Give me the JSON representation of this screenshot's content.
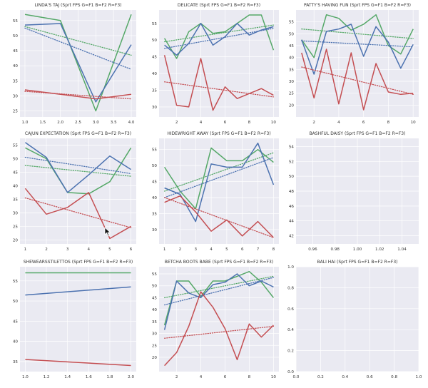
{
  "colors": {
    "background": "#eaeaf2",
    "grid": "#ffffff",
    "green": "#55a868",
    "blue": "#4c72b0",
    "red": "#c44e52"
  },
  "chart_data": [
    {
      "type": "line",
      "title": "LINDA'S TAJ (Sprt FPS G=F1 B=F2 R=F3)",
      "x": [
        1,
        2,
        3,
        4
      ],
      "xticks": [
        "1.0",
        "1.5",
        "2.0",
        "2.5",
        "3.0",
        "3.5",
        "4.0"
      ],
      "xtick_values": [
        1,
        1.5,
        2,
        2.5,
        3,
        3.5,
        4
      ],
      "xlim": [
        0.86,
        4.14
      ],
      "yticks": [
        "25",
        "30",
        "35",
        "40",
        "45",
        "50",
        "55"
      ],
      "ytick_values": [
        25,
        30,
        35,
        40,
        45,
        50,
        55
      ],
      "ylim": [
        23,
        58.5
      ],
      "series": [
        {
          "color": "green",
          "values": [
            57,
            55,
            25,
            57
          ],
          "trend": [
            53,
            43.5
          ]
        },
        {
          "color": "blue",
          "values": [
            53.5,
            54,
            28,
            47
          ],
          "trend": [
            52.5,
            38.8
          ]
        },
        {
          "color": "red",
          "values": [
            32,
            30.5,
            29,
            30.5
          ],
          "trend": [
            31.5,
            29
          ]
        }
      ]
    },
    {
      "type": "line",
      "title": "DELICATE (Sprt FPS G=F1 B=F2 R=F3)",
      "x": [
        1,
        2,
        3,
        4,
        5,
        6,
        7,
        8,
        9,
        10
      ],
      "xticks": [
        "2",
        "4",
        "6",
        "8",
        "10"
      ],
      "xtick_values": [
        2,
        4,
        6,
        8,
        10
      ],
      "xlim": [
        0.55,
        10.45
      ],
      "yticks": [
        "30",
        "35",
        "40",
        "45",
        "50",
        "55"
      ],
      "ytick_values": [
        30,
        35,
        40,
        45,
        50,
        55
      ],
      "ylim": [
        27,
        59
      ],
      "series": [
        {
          "color": "green",
          "values": [
            50.5,
            44.5,
            52.5,
            55,
            52,
            52.5,
            55,
            57.5,
            57.5,
            47
          ],
          "trend": [
            49.5,
            54.5
          ]
        },
        {
          "color": "blue",
          "values": [
            48.5,
            45.5,
            49,
            55,
            48.5,
            51,
            55,
            51.5,
            53,
            54
          ],
          "trend": [
            47.5,
            53.5
          ]
        },
        {
          "color": "red",
          "values": [
            45.5,
            30.5,
            30,
            44.5,
            29,
            36,
            32.5,
            34,
            35.5,
            33.5
          ],
          "trend": [
            37.5,
            33
          ]
        }
      ]
    },
    {
      "type": "line",
      "title": "PATTY'S HAVING FUN (Sprt FPS G=F1 B=F2 R=F3)",
      "x": [
        1,
        2,
        3,
        4,
        5,
        6,
        7,
        8,
        9,
        10
      ],
      "xticks": [
        "2",
        "4",
        "6",
        "8",
        "10"
      ],
      "xtick_values": [
        2,
        4,
        6,
        8,
        10
      ],
      "xlim": [
        0.55,
        10.45
      ],
      "yticks": [
        "20",
        "25",
        "30",
        "35",
        "40",
        "45",
        "50",
        "55"
      ],
      "ytick_values": [
        20,
        25,
        30,
        35,
        40,
        45,
        50,
        55
      ],
      "ylim": [
        15,
        60
      ],
      "series": [
        {
          "color": "green",
          "values": [
            47.5,
            40,
            58,
            56.5,
            51.5,
            54,
            58,
            45,
            41.5,
            52
          ],
          "trend": [
            52,
            48
          ]
        },
        {
          "color": "blue",
          "values": [
            47.5,
            33,
            51,
            52,
            54,
            40.5,
            53,
            46.5,
            35.5,
            45.5
          ],
          "trend": [
            47,
            44.5
          ]
        },
        {
          "color": "red",
          "values": [
            42,
            23,
            43.5,
            20.5,
            42,
            18,
            37.5,
            25.5,
            24.5,
            25
          ],
          "trend": [
            36,
            24.5
          ]
        }
      ]
    },
    {
      "type": "line",
      "title": "CAJUN EXPECTATION (Sprt FPS G=F1 B=F2 R=F3)",
      "x": [
        1,
        2,
        3,
        4,
        5,
        6
      ],
      "xticks": [
        "1",
        "2",
        "3",
        "4",
        "5",
        "6"
      ],
      "xtick_values": [
        1,
        2,
        3,
        4,
        5,
        6
      ],
      "xlim": [
        0.75,
        6.25
      ],
      "yticks": [
        "20",
        "25",
        "30",
        "35",
        "40",
        "45",
        "50",
        "55"
      ],
      "ytick_values": [
        20,
        25,
        30,
        35,
        40,
        45,
        50,
        55
      ],
      "ylim": [
        18.5,
        57.5
      ],
      "series": [
        {
          "color": "green",
          "values": [
            54,
            50,
            37.5,
            37,
            41.5,
            54
          ],
          "trend": [
            47.5,
            43.5
          ]
        },
        {
          "color": "blue",
          "values": [
            56,
            50.5,
            37.5,
            44,
            51,
            46
          ],
          "trend": [
            50.5,
            44.5
          ]
        },
        {
          "color": "red",
          "values": [
            39,
            29.5,
            32,
            37.5,
            20.5,
            25
          ],
          "trend": [
            35.5,
            24.5
          ]
        }
      ]
    },
    {
      "type": "line",
      "title": "HIDEWRIGHT AWAY (Sprt FPS G=F1 B=F2 R=F3)",
      "x": [
        1,
        2,
        3,
        4,
        5,
        6,
        7,
        8
      ],
      "xticks": [
        "1",
        "2",
        "3",
        "4",
        "5",
        "6",
        "7",
        "8"
      ],
      "xtick_values": [
        1,
        2,
        3,
        4,
        5,
        6,
        7,
        8
      ],
      "xlim": [
        0.65,
        8.35
      ],
      "yticks": [
        "30",
        "35",
        "40",
        "45",
        "50",
        "55"
      ],
      "ytick_values": [
        30,
        35,
        40,
        45,
        50,
        55
      ],
      "ylim": [
        25.5,
        58.5
      ],
      "series": [
        {
          "color": "green",
          "values": [
            49.5,
            42,
            36.5,
            55.5,
            51.5,
            51.5,
            55,
            51
          ],
          "trend": [
            42,
            54
          ]
        },
        {
          "color": "blue",
          "values": [
            43,
            41,
            32.5,
            50.5,
            49.5,
            49.5,
            57,
            44
          ],
          "trend": [
            40,
            52.5
          ]
        },
        {
          "color": "red",
          "values": [
            38.5,
            40.5,
            35.5,
            29.5,
            33,
            28,
            32.5,
            27.5
          ],
          "trend": [
            40,
            27.5
          ]
        }
      ]
    },
    {
      "type": "line",
      "title": "BASHFUL DAISY (Sprt FPS G=F1 B=F2 R=F3)",
      "x": [],
      "xticks": [
        "0.96",
        "0.98",
        "1.00",
        "1.02",
        "1.04"
      ],
      "xtick_values": [
        0.96,
        0.98,
        1,
        1.02,
        1.04
      ],
      "xlim": [
        0.945,
        1.055
      ],
      "yticks": [
        "42",
        "44",
        "46",
        "48",
        "50",
        "52",
        "54"
      ],
      "ytick_values": [
        42,
        44,
        46,
        48,
        50,
        52,
        54
      ],
      "ylim": [
        40.9,
        55.1
      ],
      "series": []
    },
    {
      "type": "line",
      "title": "SHEWEARSSTILETTOS (Sprt FPS G=F1 B=F2 R=F3)",
      "x": [
        1,
        2
      ],
      "xticks": [
        "1.0",
        "1.2",
        "1.4",
        "1.6",
        "1.8",
        "2.0"
      ],
      "xtick_values": [
        1,
        1.2,
        1.4,
        1.6,
        1.8,
        2
      ],
      "xlim": [
        0.95,
        2.05
      ],
      "yticks": [
        "35",
        "40",
        "45",
        "50",
        "55"
      ],
      "ytick_values": [
        35,
        40,
        45,
        50,
        55
      ],
      "ylim": [
        32.5,
        58.5
      ],
      "series": [
        {
          "color": "green",
          "values": [
            57,
            57
          ]
        },
        {
          "color": "blue",
          "values": [
            51.5,
            53.5
          ]
        },
        {
          "color": "red",
          "values": [
            35.5,
            34
          ]
        }
      ]
    },
    {
      "type": "line",
      "title": "BETCHA BOOTS BABE (Sprt FPS G=F1 B=F2 R=F3)",
      "x": [
        1,
        2,
        3,
        4,
        5,
        6,
        7,
        8,
        9,
        10
      ],
      "xticks": [
        "2",
        "4",
        "6",
        "8",
        "10"
      ],
      "xtick_values": [
        2,
        4,
        6,
        8,
        10
      ],
      "xlim": [
        0.55,
        10.45
      ],
      "yticks": [
        "20",
        "25",
        "30",
        "35",
        "40",
        "45",
        "50",
        "55"
      ],
      "ytick_values": [
        20,
        25,
        30,
        35,
        40,
        45,
        50,
        55
      ],
      "ylim": [
        14,
        58
      ],
      "series": [
        {
          "color": "green",
          "values": [
            33.5,
            52,
            52,
            45.5,
            52,
            52,
            54,
            56,
            51.5,
            45
          ],
          "trend": [
            45,
            54
          ]
        },
        {
          "color": "blue",
          "values": [
            31.5,
            52,
            47,
            45,
            50.5,
            51.5,
            55,
            50,
            52,
            49.5
          ],
          "trend": [
            42,
            53.5
          ]
        },
        {
          "color": "red",
          "values": [
            16.5,
            22,
            33,
            47.5,
            41,
            32,
            19,
            34,
            28.5,
            33.5
          ],
          "trend": [
            28,
            33
          ]
        }
      ]
    },
    {
      "type": "line",
      "title": "BALI HAI (Sprt FPS G=F1 B=F2 R=F3)",
      "x": [],
      "xticks": [
        "0.0",
        "0.2",
        "0.4",
        "0.6",
        "0.8",
        "1.0"
      ],
      "xtick_values": [
        0,
        0.2,
        0.4,
        0.6,
        0.8,
        1
      ],
      "xlim": [
        0,
        1
      ],
      "yticks": [
        "0.0",
        "0.2",
        "0.4",
        "0.6",
        "0.8",
        "1.0"
      ],
      "ytick_values": [
        0,
        0.2,
        0.4,
        0.6,
        0.8,
        1
      ],
      "ylim": [
        0,
        1
      ],
      "series": []
    }
  ]
}
